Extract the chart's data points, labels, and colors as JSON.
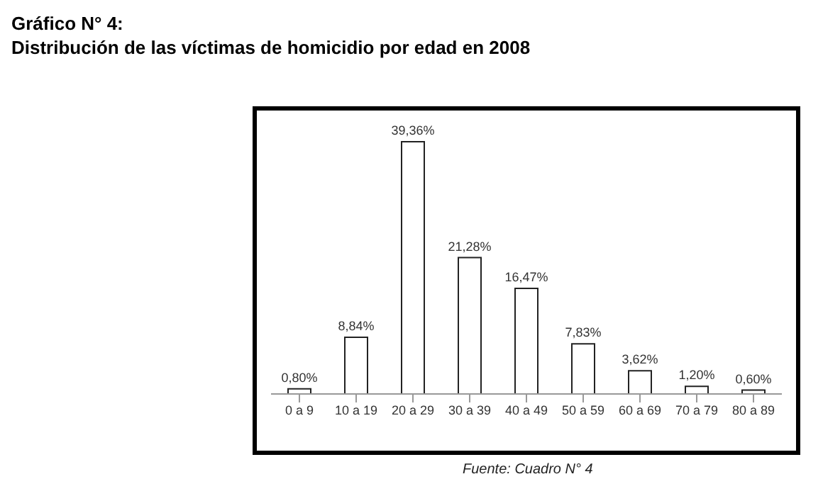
{
  "chart_data": {
    "type": "bar",
    "title": "Gráfico N° 4:",
    "subtitle": "Distribución de las víctimas de homicidio por edad en 2008",
    "categories": [
      "0 a 9",
      "10 a 19",
      "20 a 29",
      "30 a 39",
      "40 a 49",
      "50 a 59",
      "60 a 69",
      "70 a 79",
      "80 a 89"
    ],
    "values": [
      0.8,
      8.84,
      39.36,
      21.28,
      16.47,
      7.83,
      3.62,
      1.2,
      0.6
    ],
    "value_labels": [
      "0,80%",
      "8,84%",
      "39,36%",
      "21,28%",
      "16,47%",
      "7,83%",
      "3,62%",
      "1,20%",
      "0,60%"
    ],
    "color": "#ffffff",
    "annotations": [
      "Fuente: Cuadro N° 4"
    ],
    "grid": false,
    "legend": false
  }
}
